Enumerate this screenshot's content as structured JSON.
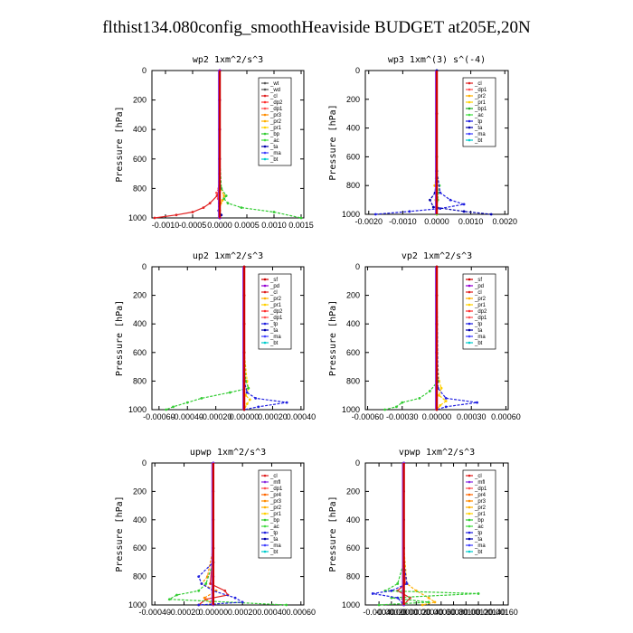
{
  "page": {
    "title": "flthist134.080config_smoothHeaviside  BUDGET at205E,20N"
  },
  "colors": {
    "_wp": "#8a2be2",
    "_pd": "#9400d3",
    "_cl": "#e02020",
    "_sf": "#cc0000",
    "_dp2": "#ff3030",
    "_dp1": "#ff5050",
    "_pr1": "#ffd000",
    "_pr2": "#ffb000",
    "_pr3": "#ff8c00",
    "_pr4": "#ff6600",
    "_bp": "#33cc33",
    "_bp1": "#22aa22",
    "_ac": "#44dd44",
    "_tp": "#2020e0",
    "_ta": "#0000aa",
    "_ma": "#4040ff",
    "_bt": "#00cccc",
    "_mfl": "#8a2be2"
  },
  "chart_data": [
    {
      "type": "line",
      "title": "wp2  1xm^2/s^3",
      "ylabel": "Pressure [hPa]",
      "ylim": [
        1000,
        0
      ],
      "xlim": [
        -0.00125,
        0.00155
      ],
      "xticks": [
        -0.001,
        -0.0005,
        0.0,
        0.0005,
        0.001,
        0.0015
      ],
      "xtick_labels": [
        "-0.0010",
        "-0.0005",
        "0.0000",
        "0.0005",
        "0.0010",
        "0.0015"
      ],
      "yticks": [
        0,
        200,
        400,
        600,
        800,
        1000
      ],
      "legend": [
        "_wt",
        "_wd",
        "_cl",
        "_dp2",
        "_dp1",
        "_pr3",
        "_pr2",
        "_pr1",
        "_bp",
        "_ac",
        "_ta",
        "_ma",
        "_bt"
      ],
      "series": [
        {
          "name": "_cl",
          "color": "#e02020",
          "p": [
            0,
            200,
            400,
            600,
            800,
            850,
            900,
            930,
            960,
            980,
            1000
          ],
          "x": [
            0,
            0,
            0,
            0,
            0,
            -5e-05,
            -0.00018,
            -0.0003,
            -0.0005,
            -0.0008,
            -0.0012
          ]
        },
        {
          "name": "_dp1",
          "color": "#ff5050",
          "p": [
            0,
            400,
            700,
            800,
            830,
            870,
            900,
            950,
            1000
          ],
          "x": [
            0,
            0,
            0,
            -2e-05,
            -6e-05,
            -3e-05,
            0,
            0,
            0
          ]
        },
        {
          "name": "_pr2",
          "color": "#ffb000",
          "p": [
            0,
            600,
            800,
            850,
            880,
            900,
            950,
            1000
          ],
          "x": [
            0,
            0,
            2e-05,
            8e-05,
            5e-05,
            2e-05,
            0,
            0
          ]
        },
        {
          "name": "_bp",
          "color": "#33cc33",
          "p": [
            0,
            600,
            800,
            850,
            870,
            900,
            930,
            960,
            1000
          ],
          "x": [
            0,
            0,
            3e-05,
            0.00012,
            8e-05,
            0.00015,
            0.0004,
            0.001,
            0.0015
          ]
        },
        {
          "name": "_ta",
          "color": "#0000aa",
          "p": [
            0,
            800,
            900,
            950,
            980,
            1000
          ],
          "x": [
            0,
            0,
            -1e-05,
            -2e-05,
            3e-05,
            0
          ]
        },
        {
          "name": "_wd",
          "color": "#9400d3",
          "p": [
            0,
            200,
            400,
            600,
            800,
            1000
          ],
          "x": [
            0,
            0,
            0,
            0,
            0,
            0
          ]
        }
      ]
    },
    {
      "type": "line",
      "title": "wp3  1xm^(3) s^(-4)",
      "ylabel": "Pressure [hPa]",
      "ylim": [
        1000,
        0
      ],
      "xlim": [
        -0.0021,
        0.0021
      ],
      "xticks": [
        -0.002,
        -0.001,
        0.0,
        0.001,
        0.002
      ],
      "xtick_labels": [
        "-0.0020",
        "-0.0010",
        "0.0000",
        "0.0010",
        "0.0020"
      ],
      "yticks": [
        0,
        200,
        400,
        600,
        800,
        1000
      ],
      "legend": [
        "_cl",
        "_dp1",
        "_pr2",
        "_pr1",
        "_bp1",
        "_ac",
        "_tp",
        "_ta",
        "_ma",
        "_bt"
      ],
      "series": [
        {
          "name": "_cl",
          "color": "#e02020",
          "p": [
            0,
            300,
            600,
            800,
            900,
            950,
            1000
          ],
          "x": [
            0,
            0,
            0,
            0,
            0,
            0,
            0
          ]
        },
        {
          "name": "_pr2",
          "color": "#ffb000",
          "p": [
            0,
            600,
            750,
            800,
            850,
            900,
            950,
            1000
          ],
          "x": [
            0,
            0,
            -2e-05,
            -6e-05,
            1e-05,
            -3e-05,
            0,
            0
          ]
        },
        {
          "name": "_ac",
          "color": "#44dd44",
          "p": [
            0,
            600,
            750,
            800,
            850,
            900,
            950,
            1000
          ],
          "x": [
            0,
            0,
            2e-05,
            8e-05,
            4e-05,
            3e-05,
            0,
            0
          ]
        },
        {
          "name": "_tp",
          "color": "#2020e0",
          "p": [
            0,
            700,
            850,
            900,
            930,
            960,
            980,
            1000
          ],
          "x": [
            0,
            0,
            0.0001,
            0.0004,
            0.0008,
            0.0001,
            -0.0008,
            -0.0018
          ]
        },
        {
          "name": "_ta",
          "color": "#0000aa",
          "p": [
            0,
            700,
            850,
            900,
            950,
            980,
            1000
          ],
          "x": [
            0,
            0,
            -5e-05,
            -0.0002,
            -0.0001,
            0.0008,
            0.0016
          ]
        }
      ]
    },
    {
      "type": "line",
      "title": "up2  1xm^2/s^3",
      "ylabel": "Pressure [hPa]",
      "ylim": [
        1000,
        0
      ],
      "xlim": [
        -0.00065,
        0.00042
      ],
      "xticks": [
        -0.0006,
        -0.0004,
        -0.0002,
        0.0,
        0.0002,
        0.0004
      ],
      "xtick_labels": [
        "-0.00060",
        "-0.00040",
        "-0.00020",
        "0.00000",
        "0.00020",
        "0.00040"
      ],
      "yticks": [
        0,
        200,
        400,
        600,
        800,
        1000
      ],
      "legend": [
        "_sf",
        "_pd",
        "_cl",
        "_pr2",
        "_pr1",
        "_dp2",
        "_dp1",
        "_tp",
        "_ta",
        "_ma",
        "_bt"
      ],
      "series": [
        {
          "name": "_pr1",
          "color": "#ffd000",
          "p": [
            0,
            600,
            800,
            850,
            900,
            930,
            960,
            1000
          ],
          "x": [
            0,
            0,
            2e-05,
            3e-05,
            1e-05,
            4e-05,
            2e-05,
            0
          ]
        },
        {
          "name": "_dp2",
          "color": "#33cc33",
          "p": [
            0,
            600,
            800,
            850,
            880,
            920,
            950,
            980,
            1000
          ],
          "x": [
            0,
            0,
            1e-05,
            3e-05,
            -0.0001,
            -0.0003,
            -0.0004,
            -0.0005,
            -0.00055
          ]
        },
        {
          "name": "_tp",
          "color": "#2020e0",
          "p": [
            0,
            800,
            880,
            920,
            950,
            980,
            1000
          ],
          "x": [
            0,
            0,
            2e-05,
            8e-05,
            0.0003,
            0.0001,
            0
          ]
        },
        {
          "name": "_sf",
          "color": "#cc0000",
          "p": [
            0,
            200,
            400,
            600,
            800,
            1000
          ],
          "x": [
            0,
            0,
            0,
            0,
            0,
            0
          ]
        }
      ]
    },
    {
      "type": "line",
      "title": "vp2  1xm^2/s^3",
      "ylabel": "Pressure [hPa]",
      "ylim": [
        1000,
        0
      ],
      "xlim": [
        -0.00062,
        0.00062
      ],
      "xticks": [
        -0.0006,
        -0.0003,
        0.0,
        0.0003,
        0.0006
      ],
      "xtick_labels": [
        "-0.00060",
        "-0.00030",
        "0.00000",
        "0.00030",
        "0.00060"
      ],
      "yticks": [
        0,
        200,
        400,
        600,
        800,
        1000
      ],
      "legend": [
        "_sf",
        "_pd",
        "_cl",
        "_pr2",
        "_pr1",
        "_dp2",
        "_dp1",
        "_tp",
        "_ta",
        "_ma",
        "_bt"
      ],
      "series": [
        {
          "name": "_pr1",
          "color": "#ffd000",
          "p": [
            0,
            600,
            800,
            850,
            900,
            940,
            970,
            1000
          ],
          "x": [
            0,
            0,
            2e-05,
            4e-05,
            2e-05,
            8e-05,
            3e-05,
            0
          ]
        },
        {
          "name": "_dp2",
          "color": "#33cc33",
          "p": [
            0,
            600,
            800,
            870,
            920,
            950,
            980,
            1000
          ],
          "x": [
            0,
            0,
            1e-05,
            -6e-05,
            -0.00015,
            -0.0003,
            -0.00035,
            -0.00045
          ]
        },
        {
          "name": "_tp",
          "color": "#2020e0",
          "p": [
            0,
            850,
            920,
            950,
            980,
            1000
          ],
          "x": [
            0,
            1e-05,
            8e-05,
            0.00035,
            8e-05,
            0
          ]
        },
        {
          "name": "_sf",
          "color": "#cc0000",
          "p": [
            0,
            200,
            400,
            600,
            800,
            1000
          ],
          "x": [
            0,
            0,
            0,
            0,
            0,
            0
          ]
        }
      ]
    },
    {
      "type": "line",
      "title": "upwp  1xm^2/s^3",
      "ylabel": "Pressure [hPa]",
      "ylim": [
        1000,
        0
      ],
      "xlim": [
        -0.00042,
        0.00062
      ],
      "xticks": [
        -0.0004,
        -0.0002,
        0.0,
        0.0002,
        0.0004,
        0.0006
      ],
      "xtick_labels": [
        "-0.00040",
        "-0.00020",
        "0.00000",
        "0.00020",
        "0.00040",
        "0.00060"
      ],
      "yticks": [
        0,
        200,
        400,
        600,
        800,
        1000
      ],
      "legend": [
        "_cl",
        "_mfl",
        "_dp1",
        "_pr4",
        "_pr3",
        "_pr2",
        "_pr1",
        "_bp",
        "_ac",
        "_tp",
        "_ta",
        "_ma",
        "_bt"
      ],
      "series": [
        {
          "name": "_cl",
          "color": "#e02020",
          "p": [
            0,
            600,
            850,
            900,
            930,
            960,
            1000
          ],
          "x": [
            0,
            0,
            -2e-05,
            8e-05,
            0.0001,
            -5e-05,
            -0.0001
          ]
        },
        {
          "name": "_pr3",
          "color": "#ff8c00",
          "p": [
            0,
            600,
            800,
            850,
            900,
            950,
            1000
          ],
          "x": [
            0,
            0,
            -4e-05,
            -8e-05,
            2e-05,
            -6e-05,
            0
          ]
        },
        {
          "name": "_bp",
          "color": "#33cc33",
          "p": [
            0,
            700,
            850,
            900,
            930,
            960,
            1000
          ],
          "x": [
            0,
            0,
            -5e-05,
            -0.0001,
            -0.00025,
            -0.0003,
            0.0005
          ]
        },
        {
          "name": "_tp",
          "color": "#2020e0",
          "p": [
            0,
            700,
            800,
            850,
            900,
            950,
            980,
            1000
          ],
          "x": [
            0,
            0,
            -0.0001,
            -8e-05,
            0,
            0.00015,
            0.0002,
            -0.0001
          ]
        },
        {
          "name": "_mfl",
          "color": "#8a2be2",
          "p": [
            0,
            200,
            400,
            600,
            800,
            1000
          ],
          "x": [
            0,
            0,
            0,
            0,
            0,
            0
          ]
        }
      ]
    },
    {
      "type": "line",
      "title": "vpwp  1xm^2/s^3",
      "ylabel": "Pressure [hPa]",
      "ylim": [
        1000,
        0
      ],
      "xlim": [
        -0.00062,
        0.00168
      ],
      "xticks": [
        -0.0004,
        -0.0002,
        0.0,
        0.0002,
        0.0004,
        0.0006,
        0.0008,
        0.001,
        0.0012,
        0.0014,
        0.0016
      ],
      "xtick_labels": [
        "-0.00040",
        "-0.00020",
        "0.00000",
        "0.00020",
        "0.00040",
        "0.00060",
        "0.00080",
        "0.00100",
        "0.00120",
        "0.00140",
        "0.00160"
      ],
      "yticks": [
        0,
        200,
        400,
        600,
        800,
        1000
      ],
      "legend": [
        "_cl",
        "_mfl",
        "_dp1",
        "_pr4",
        "_pr3",
        "_pr2",
        "_pr1",
        "_bp",
        "_ac",
        "_tp",
        "_ta",
        "_ma",
        "_bt"
      ],
      "series": [
        {
          "name": "_cl",
          "color": "#e02020",
          "p": [
            0,
            600,
            850,
            900,
            950,
            1000
          ],
          "x": [
            0,
            0,
            2e-05,
            -0.0001,
            0.0001,
            0
          ]
        },
        {
          "name": "_pr2",
          "color": "#ffb000",
          "p": [
            0,
            600,
            850,
            900,
            950,
            980,
            1000
          ],
          "x": [
            0,
            0,
            5e-05,
            0.0002,
            0.0004,
            0.0005,
            0.0003
          ]
        },
        {
          "name": "_bp",
          "color": "#33cc33",
          "p": [
            0,
            700,
            850,
            900,
            920,
            950,
            980,
            1000
          ],
          "x": [
            0,
            0,
            -0.0001,
            -0.0003,
            0.0012,
            -0.0002,
            0.0004,
            -0.0004
          ]
        },
        {
          "name": "_tp",
          "color": "#2020e0",
          "p": [
            0,
            700,
            850,
            900,
            920,
            950,
            1000
          ],
          "x": [
            0,
            0,
            5e-05,
            -0.0002,
            -0.0005,
            -0.0001,
            0
          ]
        },
        {
          "name": "_mfl",
          "color": "#8a2be2",
          "p": [
            0,
            200,
            400,
            600,
            800,
            1000
          ],
          "x": [
            0,
            0,
            0,
            0,
            0,
            0
          ]
        }
      ]
    }
  ]
}
